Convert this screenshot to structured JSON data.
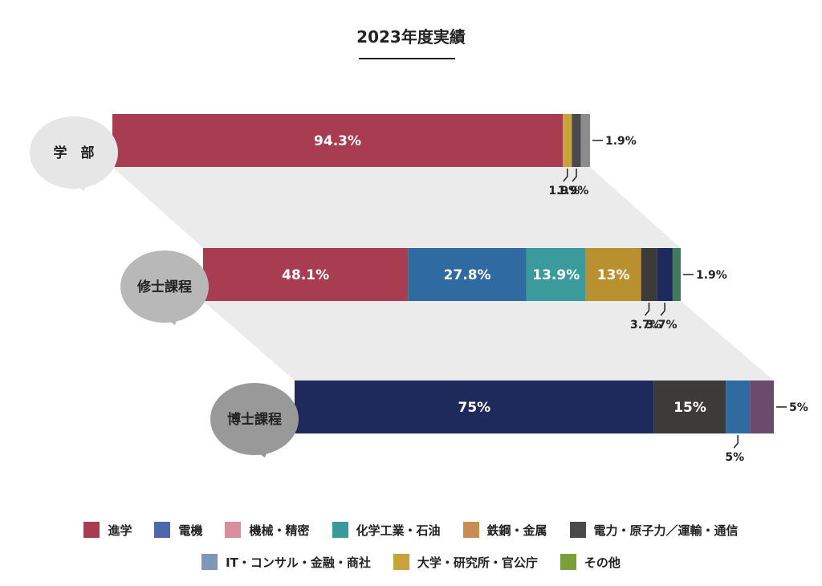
{
  "title": "2023年度実績",
  "chart_data": {
    "type": "bar",
    "orientation": "horizontal-stacked-percent",
    "groups": [
      {
        "label": "学　部",
        "segments": [
          {
            "category": "進学",
            "value": 94.3,
            "label": "94.3%"
          },
          {
            "category": "大学・研究所・官公庁",
            "value": 1.9,
            "label": "1.9%"
          },
          {
            "category": "電力・原子力／運輸・通信",
            "value": 1.9,
            "label": "1.9%"
          },
          {
            "category": "IT・コンサル・金融・商社",
            "value": 1.9,
            "label": "1.9%"
          }
        ]
      },
      {
        "label": "修士課程",
        "segments": [
          {
            "category": "進学",
            "value": 48.1,
            "label": "48.1%"
          },
          {
            "category": "電機",
            "value": 27.8,
            "label": "27.8%"
          },
          {
            "category": "化学工業・石油",
            "value": 13.9,
            "label": "13.9%"
          },
          {
            "category": "大学・研究所・官公庁",
            "value": 13,
            "label": "13%"
          },
          {
            "category": "電力・原子力／運輸・通信",
            "value": 3.7,
            "label": "3.7%"
          },
          {
            "category": "IT・コンサル・金融・商社",
            "value": 3.7,
            "label": "3.7%"
          },
          {
            "category": "その他",
            "value": 1.9,
            "label": "1.9%"
          }
        ]
      },
      {
        "label": "博士課程",
        "segments": [
          {
            "category": "電機",
            "value": 75,
            "label": "75%"
          },
          {
            "category": "電力・原子力／運輸・通信",
            "value": 15,
            "label": "15%"
          },
          {
            "category": "化学工業・石油",
            "value": 5,
            "label": "5%"
          },
          {
            "category": "その他",
            "value": 5,
            "label": "5%"
          }
        ]
      }
    ],
    "legend": [
      [
        "進学",
        "電機",
        "機械・精密",
        "化学工業・石油",
        "鉄鋼・金属",
        "電力・原子力／運輸・通信"
      ],
      [
        "IT・コンサル・金融・商社",
        "大学・研究所・官公庁",
        "その他"
      ]
    ],
    "legend_placement": "bottom"
  },
  "colors": {
    "進学": "#a83c50",
    "電機": "#4d67a8",
    "機械・精密": "#d98f9c",
    "化学工業・石油": "#3b9a9c",
    "鉄鋼・金属": "#c98c52",
    "電力・原子力／運輸・通信": "#4a4a4a",
    "IT・コンサル・金融・商社": "#7d97b8",
    "大学・研究所・官公庁": "#c9a23a",
    "その他": "#7aa03a",
    "bar_overrides": {
      "0": {
        "IT・コンサル・金融・商社": "#8c8c8c"
      },
      "1": {
        "電機": "#2f6aa0",
        "IT・コンサル・金融・商社": "#1f2a5c",
        "その他": "#3f7a5f",
        "電力・原子力／運輸・通信": "#3d3a3a",
        "大学・研究所・官公庁": "#b8902e"
      },
      "2": {
        "電機": "#1f2a5c",
        "電力・原子力／運輸・通信": "#3d3a3a",
        "化学工業・石油": "#2f6aa0",
        "その他": "#6b4a6e"
      }
    }
  }
}
